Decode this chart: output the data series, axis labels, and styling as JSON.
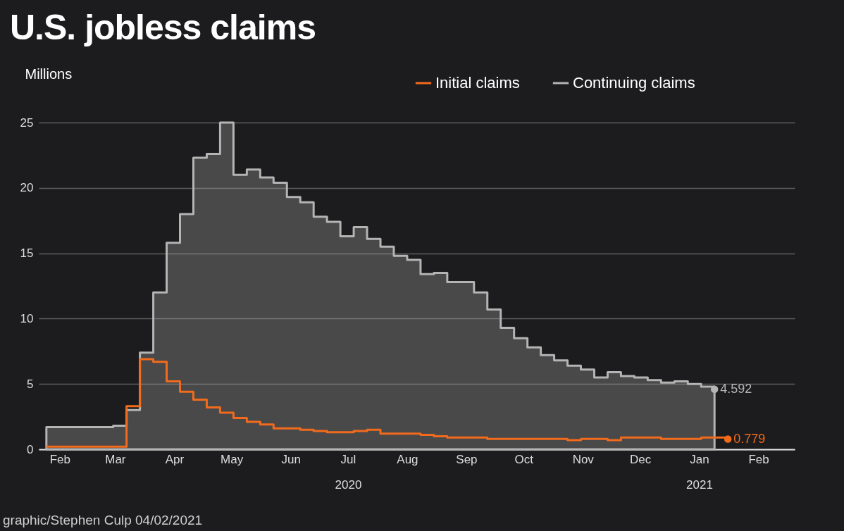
{
  "chart_data": {
    "type": "step",
    "title": "U.S. jobless claims",
    "ylabel": "Millions",
    "annotations": [
      "graphic/Stephen Culp 04/02/2021"
    ],
    "xlim": [
      "2020-02-04",
      "2021-03-06"
    ],
    "xticks": [
      {
        "value": "2020-02-15",
        "label": "Feb"
      },
      {
        "value": "2020-03-15",
        "label": "Mar"
      },
      {
        "value": "2020-04-15",
        "label": "Apr"
      },
      {
        "value": "2020-05-15",
        "label": "May"
      },
      {
        "value": "2020-06-15",
        "label": "Jun"
      },
      {
        "value": "2020-07-15",
        "label": "Jul\n2020"
      },
      {
        "value": "2020-08-15",
        "label": "Aug"
      },
      {
        "value": "2020-09-15",
        "label": "Sep"
      },
      {
        "value": "2020-10-15",
        "label": "Oct"
      },
      {
        "value": "2020-11-15",
        "label": "Nov"
      },
      {
        "value": "2020-12-15",
        "label": "Dec"
      },
      {
        "value": "2021-01-15",
        "label": "Jan\n2021"
      },
      {
        "value": "2021-02-15",
        "label": "Feb"
      }
    ],
    "ylim": [
      0,
      25
    ],
    "yticks": [
      0,
      5,
      10,
      15,
      20,
      25
    ],
    "grid": "y",
    "legend": "top right",
    "series": [
      {
        "name": "Initial claims",
        "type": "step",
        "color": "#f26b1d",
        "x": [
          "2020-02-08",
          "2020-02-15",
          "2020-02-22",
          "2020-02-29",
          "2020-03-07",
          "2020-03-14",
          "2020-03-21",
          "2020-03-28",
          "2020-04-04",
          "2020-04-11",
          "2020-04-18",
          "2020-04-25",
          "2020-05-02",
          "2020-05-09",
          "2020-05-16",
          "2020-05-23",
          "2020-05-30",
          "2020-06-06",
          "2020-06-13",
          "2020-06-20",
          "2020-06-27",
          "2020-07-04",
          "2020-07-11",
          "2020-07-18",
          "2020-07-25",
          "2020-08-01",
          "2020-08-08",
          "2020-08-15",
          "2020-08-22",
          "2020-08-29",
          "2020-09-05",
          "2020-09-12",
          "2020-09-19",
          "2020-09-26",
          "2020-10-03",
          "2020-10-10",
          "2020-10-17",
          "2020-10-24",
          "2020-10-31",
          "2020-11-07",
          "2020-11-14",
          "2020-11-21",
          "2020-11-28",
          "2020-12-05",
          "2020-12-12",
          "2020-12-19",
          "2020-12-26",
          "2021-01-02",
          "2021-01-09",
          "2021-01-16",
          "2021-01-23",
          "2021-01-30"
        ],
        "values": [
          0.2,
          0.2,
          0.2,
          0.2,
          0.2,
          0.2,
          3.3,
          6.9,
          6.7,
          5.2,
          4.4,
          3.8,
          3.2,
          2.8,
          2.4,
          2.1,
          1.9,
          1.6,
          1.6,
          1.5,
          1.4,
          1.3,
          1.3,
          1.4,
          1.5,
          1.2,
          1.2,
          1.2,
          1.1,
          1.0,
          0.9,
          0.9,
          0.9,
          0.8,
          0.8,
          0.8,
          0.8,
          0.8,
          0.8,
          0.7,
          0.8,
          0.8,
          0.7,
          0.9,
          0.9,
          0.9,
          0.8,
          0.8,
          0.8,
          0.9,
          0.9,
          0.779
        ],
        "value_labels": [
          null,
          null,
          null,
          null,
          null,
          null,
          null,
          null,
          null,
          null,
          null,
          null,
          null,
          null,
          null,
          null,
          null,
          null,
          null,
          null,
          null,
          null,
          null,
          null,
          null,
          null,
          null,
          null,
          null,
          null,
          null,
          null,
          null,
          null,
          null,
          null,
          null,
          null,
          null,
          null,
          null,
          null,
          null,
          null,
          null,
          null,
          null,
          null,
          null,
          null,
          null,
          "0.779"
        ]
      },
      {
        "name": "Continuing claims",
        "type": "area",
        "color": "#b4b4b4",
        "x": [
          "2020-02-08",
          "2020-02-15",
          "2020-02-22",
          "2020-02-29",
          "2020-03-07",
          "2020-03-14",
          "2020-03-21",
          "2020-03-28",
          "2020-04-04",
          "2020-04-11",
          "2020-04-18",
          "2020-04-25",
          "2020-05-02",
          "2020-05-09",
          "2020-05-16",
          "2020-05-23",
          "2020-05-30",
          "2020-06-06",
          "2020-06-13",
          "2020-06-20",
          "2020-06-27",
          "2020-07-04",
          "2020-07-11",
          "2020-07-18",
          "2020-07-25",
          "2020-08-01",
          "2020-08-08",
          "2020-08-15",
          "2020-08-22",
          "2020-08-29",
          "2020-09-05",
          "2020-09-12",
          "2020-09-19",
          "2020-09-26",
          "2020-10-03",
          "2020-10-10",
          "2020-10-17",
          "2020-10-24",
          "2020-10-31",
          "2020-11-07",
          "2020-11-14",
          "2020-11-21",
          "2020-11-28",
          "2020-12-05",
          "2020-12-12",
          "2020-12-19",
          "2020-12-26",
          "2021-01-02",
          "2021-01-09",
          "2021-01-16",
          "2021-01-23"
        ],
        "values": [
          1.7,
          1.7,
          1.7,
          1.7,
          1.7,
          1.8,
          3.0,
          7.4,
          12.0,
          15.8,
          18.0,
          22.3,
          22.6,
          25.0,
          21.0,
          21.4,
          20.8,
          20.4,
          19.3,
          18.9,
          17.8,
          17.4,
          16.3,
          17.0,
          16.1,
          15.5,
          14.8,
          14.5,
          13.4,
          13.5,
          12.8,
          12.8,
          12.0,
          10.7,
          9.3,
          8.5,
          7.8,
          7.2,
          6.8,
          6.4,
          6.1,
          5.5,
          5.9,
          5.6,
          5.5,
          5.3,
          5.1,
          5.2,
          5.0,
          4.8,
          4.592
        ],
        "value_labels": [
          null,
          null,
          null,
          null,
          null,
          null,
          null,
          null,
          null,
          null,
          null,
          null,
          null,
          null,
          null,
          null,
          null,
          null,
          null,
          null,
          null,
          null,
          null,
          null,
          null,
          null,
          null,
          null,
          null,
          null,
          null,
          null,
          null,
          null,
          null,
          null,
          null,
          null,
          null,
          null,
          null,
          null,
          null,
          null,
          null,
          null,
          null,
          null,
          null,
          null,
          "4.592"
        ]
      }
    ]
  }
}
